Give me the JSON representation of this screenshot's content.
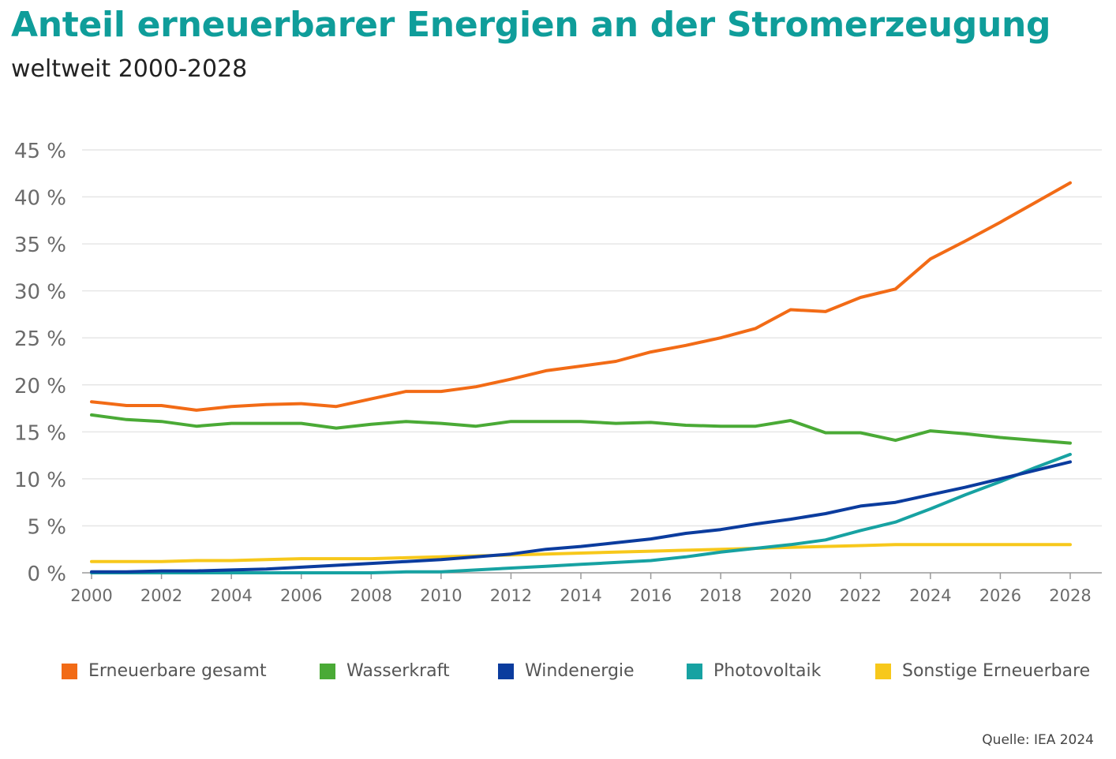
{
  "header": {
    "title": "Anteil erneuerbarer Energien an der Stromerzeugung",
    "subtitle": "weltweit 2000-2028"
  },
  "source": "Quelle: IEA 2024",
  "chart_data": {
    "type": "line",
    "title": "Anteil erneuerbarer Energien an der Stromerzeugung",
    "subtitle": "weltweit 2000-2028",
    "x": [
      2000,
      2001,
      2002,
      2003,
      2004,
      2005,
      2006,
      2007,
      2008,
      2009,
      2010,
      2011,
      2012,
      2013,
      2014,
      2015,
      2016,
      2017,
      2018,
      2019,
      2020,
      2021,
      2022,
      2023,
      2024,
      2025,
      2026,
      2027,
      2028
    ],
    "x_ticks": [
      "2000",
      "2002",
      "2004",
      "2006",
      "2008",
      "2010",
      "2012",
      "2014",
      "2016",
      "2018",
      "2020",
      "2022",
      "2024",
      "2026",
      "2028"
    ],
    "xlim": [
      2000,
      2028
    ],
    "ylim": [
      0,
      45
    ],
    "y_ticks": [
      0,
      5,
      10,
      15,
      20,
      25,
      30,
      35,
      40,
      45
    ],
    "y_tick_labels": [
      "0 %",
      "5 %",
      "10 %",
      "15 %",
      "20 %",
      "25 %",
      "30 %",
      "35 %",
      "40 %",
      "45 %"
    ],
    "grid": true,
    "legend_position": "bottom",
    "series": [
      {
        "name": "Erneuerbare gesamt",
        "color": "#f26b16",
        "values": [
          18.2,
          17.8,
          17.8,
          17.3,
          17.7,
          17.9,
          18.0,
          17.7,
          18.5,
          19.3,
          19.3,
          19.8,
          20.6,
          21.5,
          22.0,
          22.5,
          23.5,
          24.2,
          25.0,
          26.0,
          28.0,
          27.8,
          29.3,
          30.2,
          33.4,
          35.3,
          37.3,
          39.4,
          41.5
        ]
      },
      {
        "name": "Wasserkraft",
        "color": "#4aaa36",
        "values": [
          16.8,
          16.3,
          16.1,
          15.6,
          15.9,
          15.9,
          15.9,
          15.4,
          15.8,
          16.1,
          15.9,
          15.6,
          16.1,
          16.1,
          16.1,
          15.9,
          16.0,
          15.7,
          15.6,
          15.6,
          16.2,
          14.9,
          14.9,
          14.1,
          15.1,
          14.8,
          14.4,
          14.1,
          13.8
        ]
      },
      {
        "name": "Windenergie",
        "color": "#0b3c9e",
        "values": [
          0.1,
          0.1,
          0.2,
          0.2,
          0.3,
          0.4,
          0.6,
          0.8,
          1.0,
          1.2,
          1.4,
          1.7,
          2.0,
          2.5,
          2.8,
          3.2,
          3.6,
          4.2,
          4.6,
          5.2,
          5.7,
          6.3,
          7.1,
          7.5,
          8.3,
          9.1,
          10.0,
          10.9,
          11.8
        ]
      },
      {
        "name": "Photovoltaik",
        "color": "#17a2a2",
        "values": [
          0.0,
          0.0,
          0.0,
          0.0,
          0.0,
          0.0,
          0.0,
          0.0,
          0.0,
          0.1,
          0.1,
          0.3,
          0.5,
          0.7,
          0.9,
          1.1,
          1.3,
          1.7,
          2.2,
          2.6,
          3.0,
          3.5,
          4.5,
          5.4,
          6.8,
          8.3,
          9.7,
          11.2,
          12.6
        ]
      },
      {
        "name": "Sonstige Erneuerbare",
        "color": "#f7c81b",
        "values": [
          1.2,
          1.2,
          1.2,
          1.3,
          1.3,
          1.4,
          1.5,
          1.5,
          1.5,
          1.6,
          1.7,
          1.8,
          1.9,
          2.0,
          2.1,
          2.2,
          2.3,
          2.4,
          2.5,
          2.6,
          2.7,
          2.8,
          2.9,
          3.0,
          3.0,
          3.0,
          3.0,
          3.0,
          3.0
        ]
      }
    ]
  }
}
